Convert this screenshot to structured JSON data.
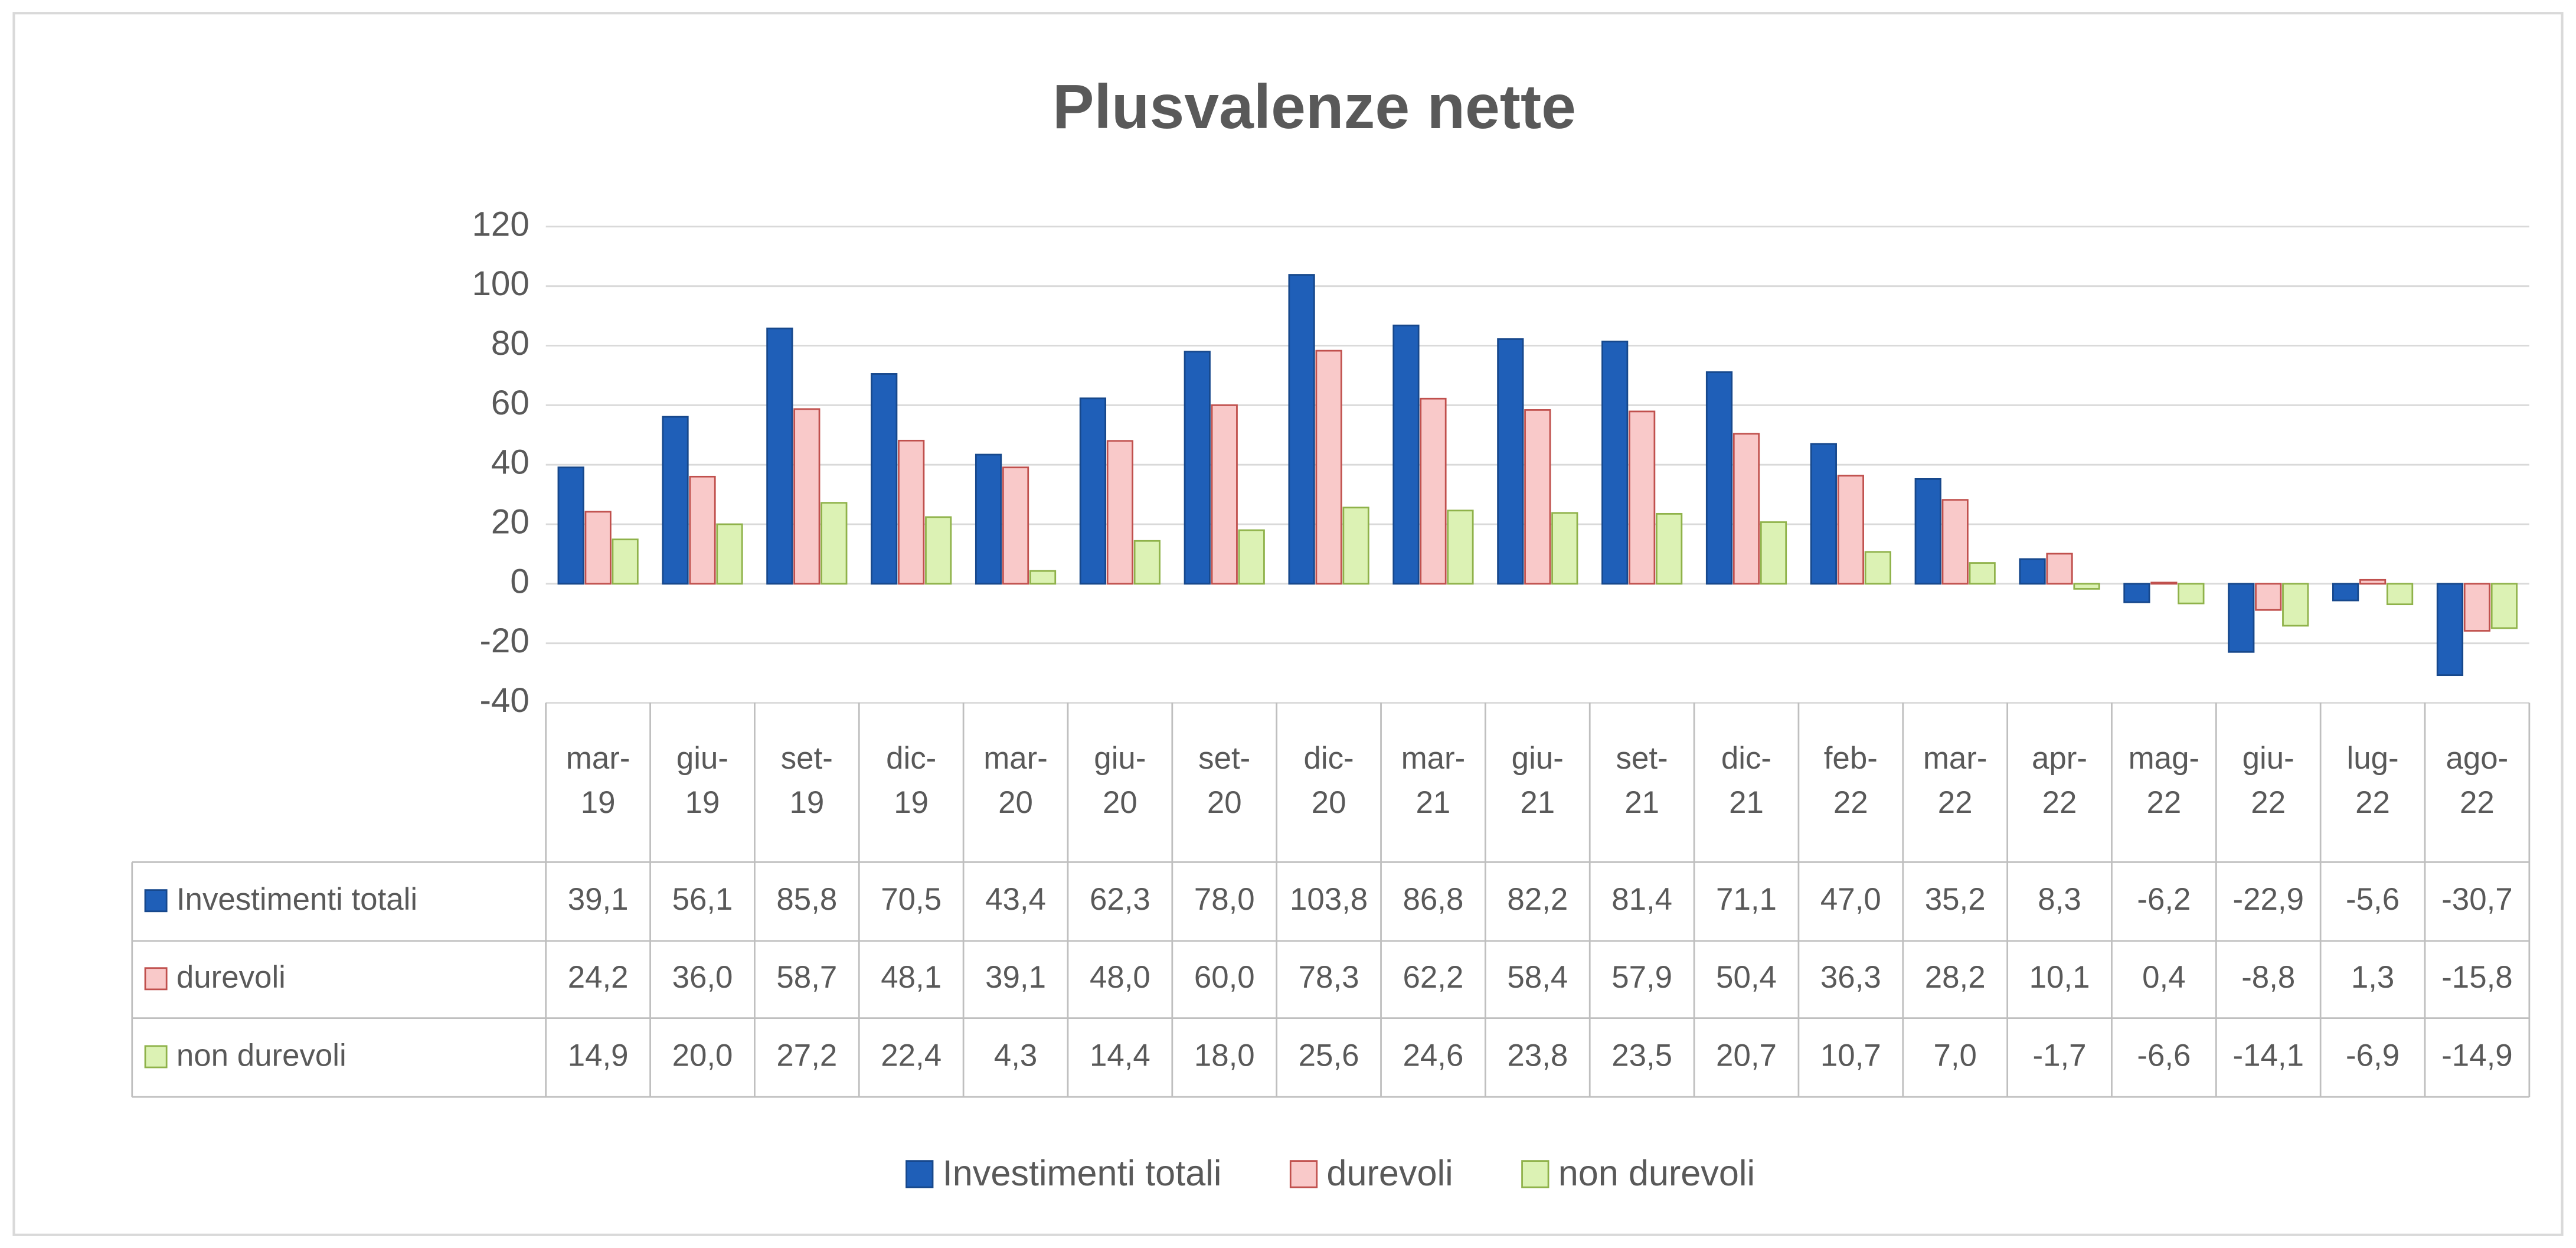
{
  "chart_data": {
    "type": "bar",
    "title": "Plusvalenze nette",
    "categories": [
      "mar-19",
      "giu-19",
      "set-19",
      "dic-19",
      "mar-20",
      "giu-20",
      "set-20",
      "dic-20",
      "mar-21",
      "giu-21",
      "set-21",
      "dic-21",
      "feb-22",
      "mar-22",
      "apr-22",
      "mag-22",
      "giu-22",
      "lug-22",
      "ago-22"
    ],
    "series": [
      {
        "name": "Investimenti totali",
        "color": "#1f5fb8",
        "edge_color": "#17488c",
        "values": [
          39.1,
          56.1,
          85.8,
          70.5,
          43.4,
          62.3,
          78.0,
          103.8,
          86.8,
          82.2,
          81.4,
          71.1,
          47.0,
          35.2,
          8.3,
          -6.2,
          -22.9,
          -5.6,
          -30.7
        ],
        "value_labels": [
          "39,1",
          "56,1",
          "85,8",
          "70,5",
          "43,4",
          "62,3",
          "78,0",
          "103,8",
          "86,8",
          "82,2",
          "81,4",
          "71,1",
          "47,0",
          "35,2",
          "8,3",
          "-6,2",
          "-22,9",
          "-5,6",
          "-30,7"
        ]
      },
      {
        "name": "durevoli",
        "color": "#f9c9c9",
        "edge_color": "#c0504d",
        "values": [
          24.2,
          36.0,
          58.7,
          48.1,
          39.1,
          48.0,
          60.0,
          78.3,
          62.2,
          58.4,
          57.9,
          50.4,
          36.3,
          28.2,
          10.1,
          0.4,
          -8.8,
          1.3,
          -15.8
        ],
        "value_labels": [
          "24,2",
          "36,0",
          "58,7",
          "48,1",
          "39,1",
          "48,0",
          "60,0",
          "78,3",
          "62,2",
          "58,4",
          "57,9",
          "50,4",
          "36,3",
          "28,2",
          "10,1",
          "0,4",
          "-8,8",
          "1,3",
          "-15,8"
        ]
      },
      {
        "name": "non durevoli",
        "color": "#dcf2b4",
        "edge_color": "#8fb24a",
        "values": [
          14.9,
          20.0,
          27.2,
          22.4,
          4.3,
          14.4,
          18.0,
          25.6,
          24.6,
          23.8,
          23.5,
          20.7,
          10.7,
          7.0,
          -1.7,
          -6.6,
          -14.1,
          -6.9,
          -14.9
        ],
        "value_labels": [
          "14,9",
          "20,0",
          "27,2",
          "22,4",
          "4,3",
          "14,4",
          "18,0",
          "25,6",
          "24,6",
          "23,8",
          "23,5",
          "20,7",
          "10,7",
          "7,0",
          "-1,7",
          "-6,6",
          "-14,1",
          "-6,9",
          "-14,9"
        ]
      }
    ],
    "ylim": [
      -40,
      120
    ],
    "yticks": [
      -40,
      -20,
      0,
      20,
      40,
      60,
      80,
      100,
      120
    ],
    "grid": true,
    "legend": "bottom"
  }
}
